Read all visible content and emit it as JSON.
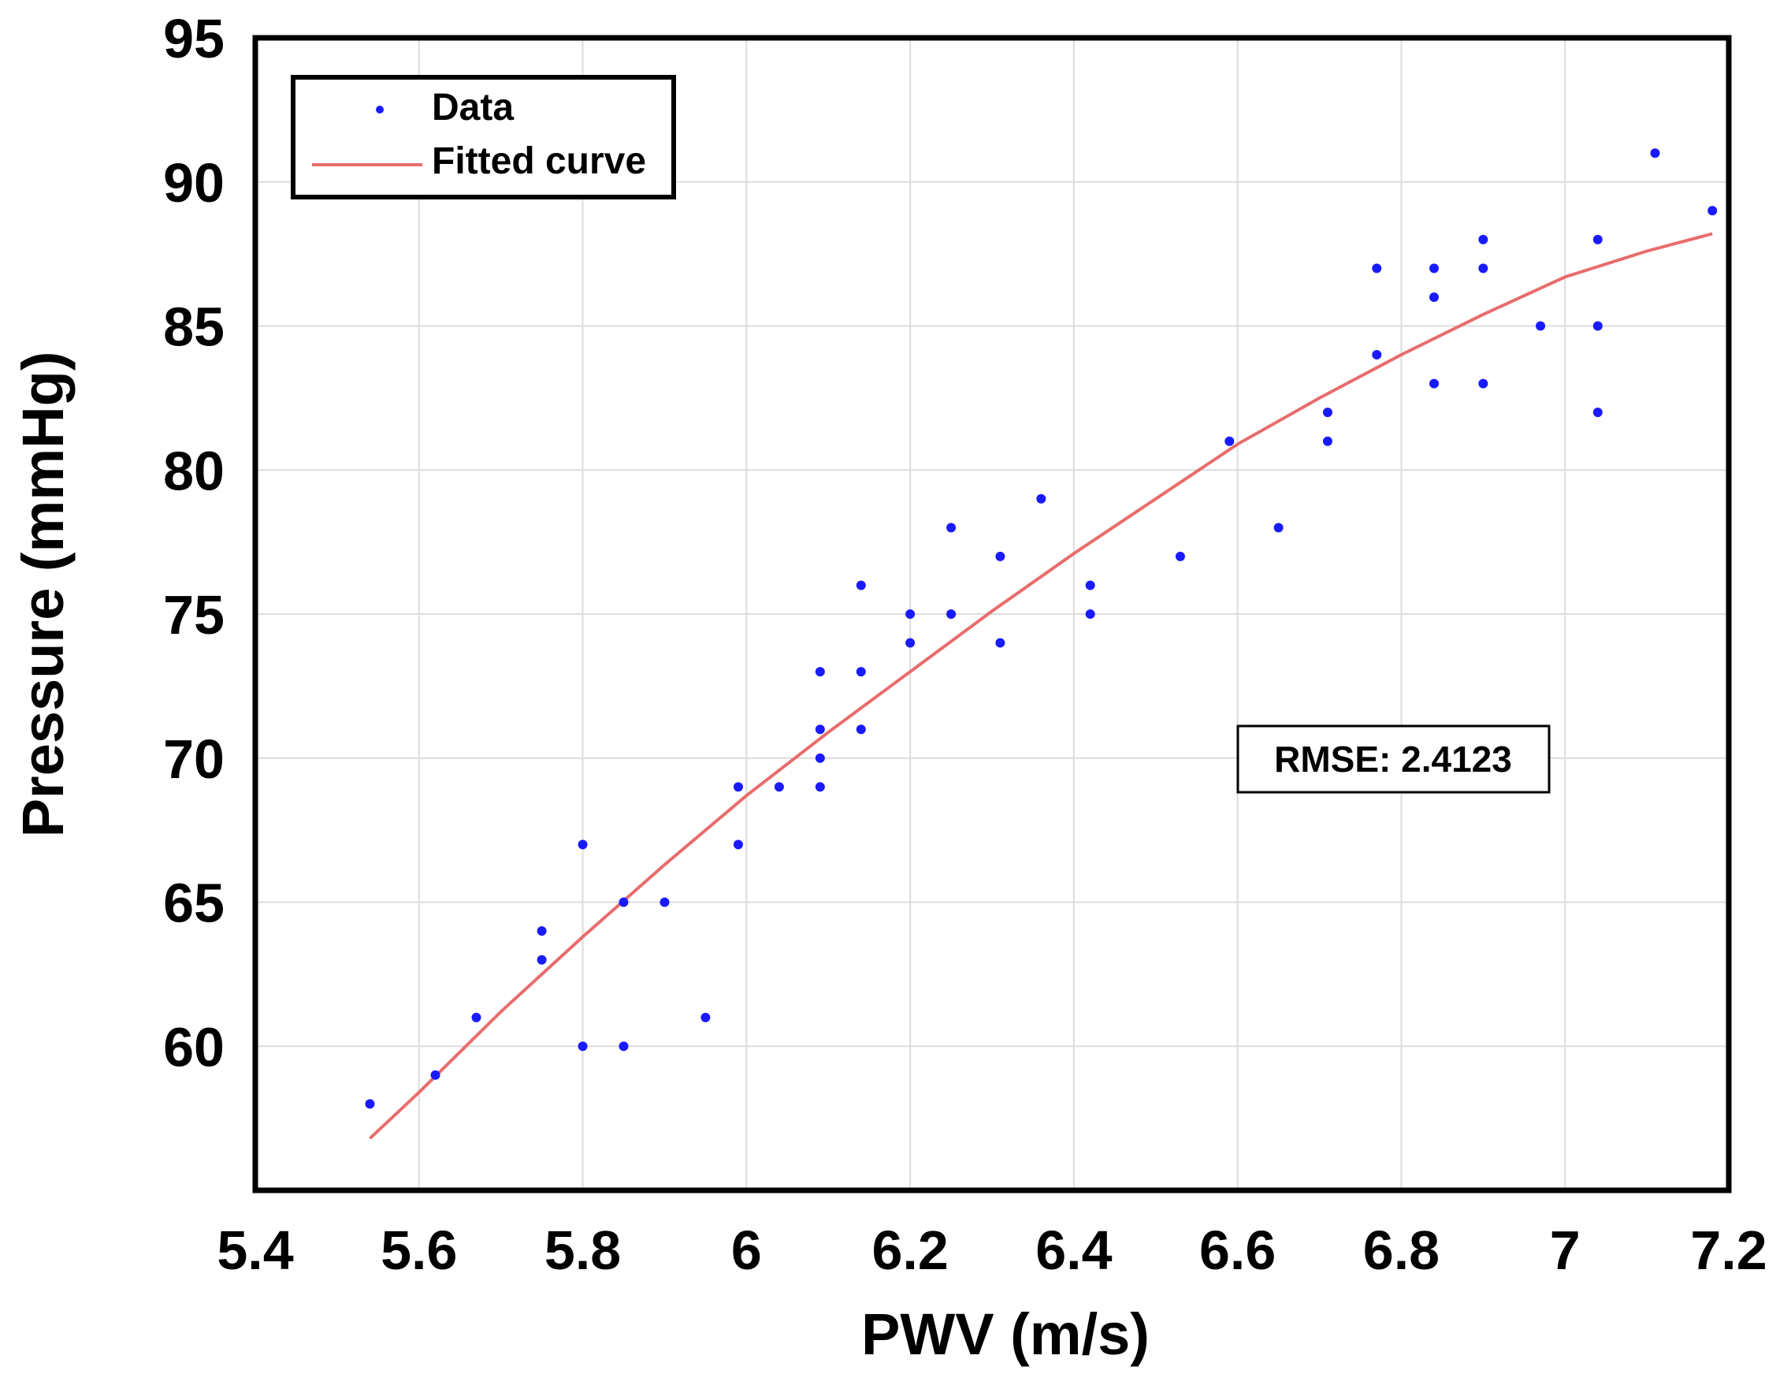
{
  "chart_data": {
    "type": "scatter",
    "xlabel": "PWV (m/s)",
    "ylabel": "Pressure (mmHg)",
    "xlim": [
      5.4,
      7.2
    ],
    "ylim": [
      55,
      95
    ],
    "xticks": [
      5.4,
      5.6,
      5.8,
      6,
      6.2,
      6.4,
      6.6,
      6.8,
      7,
      7.2
    ],
    "xtick_labels": [
      "5.4",
      "5.6",
      "5.8",
      "6",
      "6.2",
      "6.4",
      "6.6",
      "6.8",
      "7",
      "7.2"
    ],
    "yticks": [
      60,
      65,
      70,
      75,
      80,
      85,
      90,
      95
    ],
    "ytick_labels": [
      "60",
      "65",
      "70",
      "75",
      "80",
      "85",
      "90",
      "95"
    ],
    "grid": true,
    "legend_position": "top-left",
    "series": [
      {
        "name": "Data",
        "kind": "points",
        "color": "#1a1aff",
        "x": [
          5.54,
          5.62,
          5.67,
          5.75,
          5.75,
          5.8,
          5.8,
          5.85,
          5.85,
          5.9,
          5.95,
          5.99,
          5.99,
          6.04,
          6.09,
          6.09,
          6.09,
          6.09,
          6.14,
          6.14,
          6.14,
          6.2,
          6.2,
          6.25,
          6.25,
          6.31,
          6.31,
          6.36,
          6.42,
          6.42,
          6.53,
          6.59,
          6.65,
          6.71,
          6.71,
          6.77,
          6.77,
          6.84,
          6.84,
          6.84,
          6.9,
          6.9,
          6.9,
          6.97,
          7.04,
          7.04,
          7.04,
          7.11,
          7.18
        ],
        "y": [
          58,
          59,
          61,
          64,
          63,
          67,
          60,
          65,
          60,
          65,
          61,
          69,
          67,
          69,
          73,
          71,
          70,
          69,
          76,
          73,
          71,
          75,
          74,
          78,
          75,
          77,
          74,
          79,
          76,
          75,
          77,
          81,
          78,
          82,
          81,
          87,
          84,
          87,
          86,
          83,
          88,
          87,
          83,
          85,
          88,
          85,
          82,
          91,
          89
        ]
      },
      {
        "name": "Fitted curve",
        "kind": "line",
        "color": "#e86c6c",
        "x": [
          5.54,
          5.6,
          5.7,
          5.8,
          5.9,
          6.0,
          6.1,
          6.2,
          6.3,
          6.4,
          6.5,
          6.6,
          6.7,
          6.8,
          6.9,
          7.0,
          7.1,
          7.18
        ],
        "y": [
          56.8,
          58.4,
          61.2,
          63.8,
          66.3,
          68.7,
          70.9,
          73.0,
          75.1,
          77.1,
          79.0,
          80.9,
          82.5,
          84.0,
          85.4,
          86.7,
          87.6,
          88.2
        ]
      }
    ],
    "legend": [
      "Data",
      "Fitted curve"
    ],
    "annotation": "RMSE: 2.4123"
  }
}
